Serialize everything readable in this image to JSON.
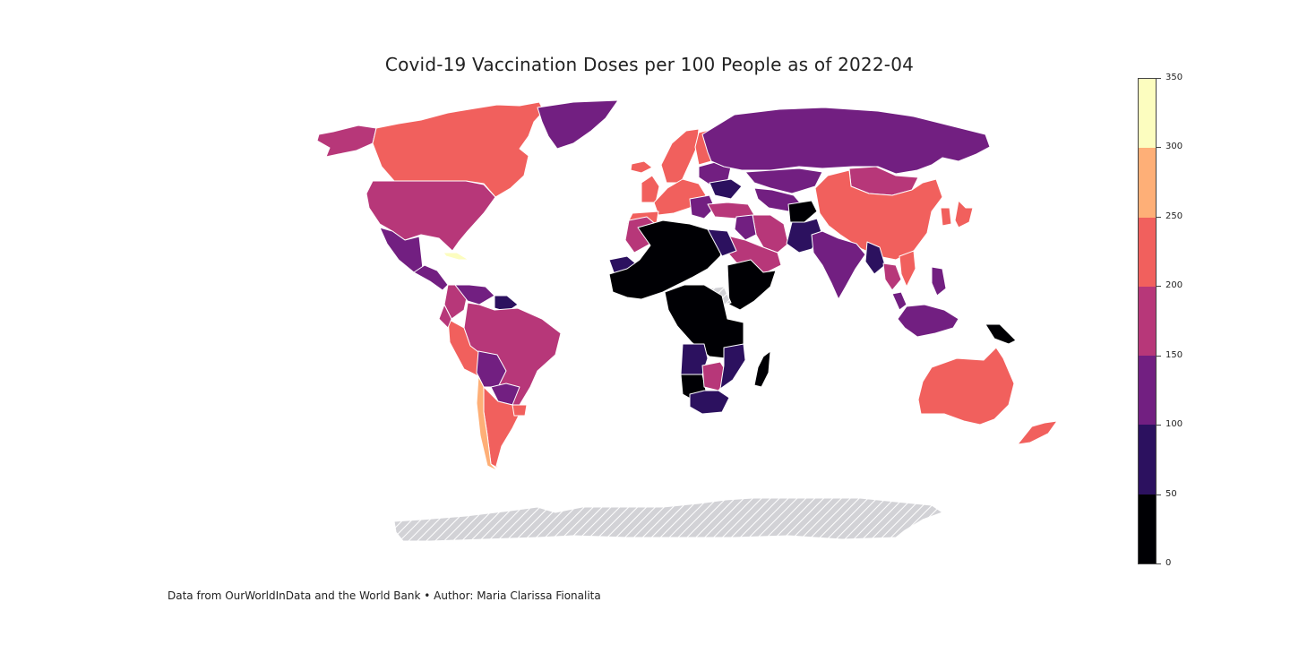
{
  "title": "Covid-19 Vaccination Doses per 100 People as of 2022-04",
  "footnote": "Data from OurWorldInData and the World Bank • Author: Maria Clarissa Fionalita",
  "legend": {
    "min": 0,
    "max": 350,
    "ticks": [
      "0",
      "50",
      "100",
      "150",
      "200",
      "250",
      "300",
      "350"
    ],
    "bins": [
      {
        "from": 0,
        "to": 50,
        "color": "#000004"
      },
      {
        "from": 50,
        "to": 100,
        "color": "#2c115f"
      },
      {
        "from": 100,
        "to": 150,
        "color": "#721f81"
      },
      {
        "from": 150,
        "to": 200,
        "color": "#b73779"
      },
      {
        "from": 200,
        "to": 250,
        "color": "#f1605d"
      },
      {
        "from": 250,
        "to": 300,
        "color": "#feaf77"
      },
      {
        "from": 300,
        "to": 350,
        "color": "#fcfdbf"
      }
    ],
    "no_data_color": "#cccccc"
  },
  "regions": [
    {
      "name": "Alaska",
      "bin": 3
    },
    {
      "name": "Canada",
      "bin": 4
    },
    {
      "name": "United States",
      "bin": 3
    },
    {
      "name": "Mexico",
      "bin": 2
    },
    {
      "name": "Central America",
      "bin": 2
    },
    {
      "name": "Cuba",
      "bin": 6
    },
    {
      "name": "Greenland",
      "bin": 2
    },
    {
      "name": "Colombia",
      "bin": 3
    },
    {
      "name": "Venezuela",
      "bin": 2
    },
    {
      "name": "Guyana",
      "bin": 1
    },
    {
      "name": "Brazil",
      "bin": 3
    },
    {
      "name": "Peru",
      "bin": 4
    },
    {
      "name": "Ecuador",
      "bin": 3
    },
    {
      "name": "Bolivia",
      "bin": 2
    },
    {
      "name": "Paraguay",
      "bin": 2
    },
    {
      "name": "Argentina",
      "bin": 4
    },
    {
      "name": "Chile",
      "bin": 5
    },
    {
      "name": "Uruguay",
      "bin": 4
    },
    {
      "name": "Iceland",
      "bin": 4
    },
    {
      "name": "Scandinavia",
      "bin": 4
    },
    {
      "name": "Finland",
      "bin": 4
    },
    {
      "name": "United Kingdom",
      "bin": 4
    },
    {
      "name": "Western Europe",
      "bin": 4
    },
    {
      "name": "Iberia",
      "bin": 4
    },
    {
      "name": "Eastern Europe",
      "bin": 2
    },
    {
      "name": "Ukraine",
      "bin": 1
    },
    {
      "name": "Balkans",
      "bin": 2
    },
    {
      "name": "Turkey",
      "bin": 3
    },
    {
      "name": "Russia",
      "bin": 2
    },
    {
      "name": "Kazakhstan",
      "bin": 2
    },
    {
      "name": "Central Asia",
      "bin": 2
    },
    {
      "name": "Mongolia",
      "bin": 3
    },
    {
      "name": "China",
      "bin": 4
    },
    {
      "name": "Korea",
      "bin": 4
    },
    {
      "name": "Japan",
      "bin": 4
    },
    {
      "name": "Iran",
      "bin": 3
    },
    {
      "name": "Iraq",
      "bin": 2
    },
    {
      "name": "Saudi Arabia",
      "bin": 3
    },
    {
      "name": "Yemen",
      "bin": 0
    },
    {
      "name": "Afghanistan",
      "bin": 0
    },
    {
      "name": "Pakistan",
      "bin": 1
    },
    {
      "name": "India",
      "bin": 2
    },
    {
      "name": "Myanmar",
      "bin": 1
    },
    {
      "name": "Thailand",
      "bin": 3
    },
    {
      "name": "Vietnam",
      "bin": 4
    },
    {
      "name": "Philippines",
      "bin": 2
    },
    {
      "name": "Malaysia",
      "bin": 2
    },
    {
      "name": "Indonesia",
      "bin": 2
    },
    {
      "name": "Papua New Guinea",
      "bin": 0
    },
    {
      "name": "Australia",
      "bin": 4
    },
    {
      "name": "New Zealand",
      "bin": 4
    },
    {
      "name": "Morocco",
      "bin": 3
    },
    {
      "name": "Western Sahara / Mauritania",
      "bin": 1
    },
    {
      "name": "North and West Africa",
      "bin": 0
    },
    {
      "name": "Egypt",
      "bin": 1
    },
    {
      "name": "Ethiopia / Horn",
      "bin": 0
    },
    {
      "name": "South Sudan",
      "bin": -1
    },
    {
      "name": "Central Africa",
      "bin": 0
    },
    {
      "name": "Angola",
      "bin": 1
    },
    {
      "name": "Namibia",
      "bin": 0
    },
    {
      "name": "Botswana / Zimbabwe",
      "bin": 3
    },
    {
      "name": "Mozambique",
      "bin": 1
    },
    {
      "name": "South Africa",
      "bin": 1
    },
    {
      "name": "Madagascar",
      "bin": 0
    },
    {
      "name": "Antarctica",
      "bin": -1
    }
  ]
}
